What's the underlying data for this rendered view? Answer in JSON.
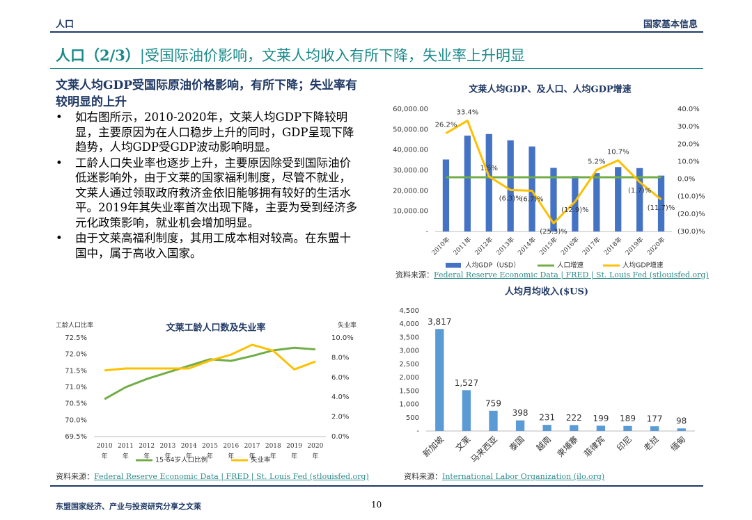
{
  "header": {
    "left": "人口",
    "right": "国家基本信息"
  },
  "title": {
    "main": "人口（2/3）",
    "sub": "|受国际油价影响，文莱人均收入有所下降，失业率上升明显"
  },
  "section": {
    "heading": "文莱人均GDP受国际原油价格影响，有所下降；失业率有较明显的上升",
    "bullets": [
      "如右图所示，2010-2020年，文莱人均GDP下降较明显，主要原因为在人口稳步上升的同时，GDP呈现下降趋势，人均GDP受GDP波动影响明显。",
      "工龄人口失业率也逐步上升，主要原因除受到国际油价低迷影响外，由于文莱的国家福利制度，尽管不就业，文莱人通过领取政府救济金依旧能够拥有较好的生活水平。2019年其失业率首次出现下降，主要为受到经济多元化政策影响，就业机会增加明显。",
      "由于文莱高福利制度，其用工成本相对较高。在东盟十国中，属于高收入国家。"
    ]
  },
  "sources": [
    {
      "prefix": "资料来源：",
      "link": "Federal Reserve Economic Data | FRED | St. Louis Fed (stlouisfed.org)"
    },
    {
      "prefix": "资料来源：",
      "link": "International Labor Organization (ilo.org)"
    },
    {
      "prefix": "资料来源：",
      "link": "Federal Reserve Economic Data | FRED | St. Louis Fed (stlouisfed.org)"
    }
  ],
  "footer": {
    "left": "东盟国家经济、产业与投资研究分享之文莱",
    "page": "10"
  },
  "chart_data": [
    {
      "type": "bar",
      "title": "文莱人均GDP、及人口、人均GDP增速",
      "categories": [
        "2010年",
        "2011年",
        "2012年",
        "2013年",
        "2014年",
        "2015年",
        "2016年",
        "2017年",
        "2018年",
        "2019年",
        "2020年"
      ],
      "series": [
        {
          "name": "人均GDP（USD）",
          "type": "bar",
          "color": "#4472c4",
          "values": [
            35300,
            47000,
            47800,
            44700,
            41700,
            31200,
            27200,
            28600,
            31600,
            31100,
            27400
          ]
        },
        {
          "name": "人口增速",
          "type": "line",
          "axis": "y2",
          "color": "#70ad47",
          "values": [
            1.0,
            1.0,
            1.0,
            1.0,
            1.0,
            1.0,
            1.0,
            1.0,
            1.0,
            1.0,
            1.0
          ]
        },
        {
          "name": "人均GDP增速",
          "type": "line",
          "axis": "y2",
          "color": "#ffc000",
          "values": [
            26.2,
            33.4,
            1.5,
            -6.3,
            -6.7,
            -25.3,
            -12.9,
            5.2,
            10.7,
            -1.7,
            -11.7
          ],
          "value_labels": [
            "26.2%",
            "33.4%",
            "1.5%",
            "(6.3)%",
            "(6.7)%",
            "(25.3)%",
            "(12.9)%",
            "5.2%",
            "10.7%",
            "(1.7)%",
            "(11.7)%"
          ]
        }
      ],
      "ylim": [
        0,
        60000
      ],
      "yticks": [
        {
          "value": 0,
          "label": "-"
        },
        {
          "value": 10000,
          "label": "10,000.00"
        },
        {
          "value": 20000,
          "label": "20,000.00"
        },
        {
          "value": 30000,
          "label": "30,000.00"
        },
        {
          "value": 40000,
          "label": "40,000.00"
        },
        {
          "value": 50000,
          "label": "50,000.00"
        },
        {
          "value": 60000,
          "label": "60,000.00"
        }
      ],
      "y2lim": [
        -30,
        40
      ],
      "y2ticks": [
        {
          "value": -30,
          "label": "(30.0)%"
        },
        {
          "value": -20,
          "label": "(20.0)%"
        },
        {
          "value": -10,
          "label": "(10.0)%"
        },
        {
          "value": 0,
          "label": "0.0%"
        },
        {
          "value": 10,
          "label": "10.0%"
        },
        {
          "value": 20,
          "label": "20.0%"
        },
        {
          "value": 30,
          "label": "30.0%"
        },
        {
          "value": 40,
          "label": "40.0%"
        }
      ],
      "grid": false,
      "legend": "bottom"
    },
    {
      "type": "line",
      "title": "文莱工龄人口数及失业率",
      "ylabel": "工龄人口比率",
      "y2label": "失业率",
      "categories": [
        "2010年",
        "2011年",
        "2012年",
        "2013年",
        "2014年",
        "2015年",
        "2016年",
        "2017年",
        "2018年",
        "2019年",
        "2020年"
      ],
      "series": [
        {
          "name": "15-64岁人口比例",
          "color": "#70ad47",
          "values": [
            70.64,
            71.0,
            71.25,
            71.45,
            71.65,
            71.85,
            71.8,
            71.95,
            72.12,
            72.2,
            72.15
          ]
        },
        {
          "name": "失业率",
          "axis": "y2",
          "color": "#ffc000",
          "values": [
            6.7,
            6.9,
            6.9,
            6.9,
            6.9,
            7.7,
            8.3,
            9.3,
            8.7,
            6.8,
            7.6
          ]
        }
      ],
      "ylim": [
        69.5,
        72.5
      ],
      "yticks": [
        {
          "value": 69.5,
          "label": "69.5%"
        },
        {
          "value": 70.0,
          "label": "70.0%"
        },
        {
          "value": 70.5,
          "label": "70.5%"
        },
        {
          "value": 71.0,
          "label": "71.0%"
        },
        {
          "value": 71.5,
          "label": "71.5%"
        },
        {
          "value": 72.0,
          "label": "72.0%"
        },
        {
          "value": 72.5,
          "label": "72.5%"
        }
      ],
      "y2lim": [
        0,
        10
      ],
      "y2ticks": [
        {
          "value": 0,
          "label": "0.0%"
        },
        {
          "value": 2,
          "label": "2.0%"
        },
        {
          "value": 4,
          "label": "4.0%"
        },
        {
          "value": 6,
          "label": "6.0%"
        },
        {
          "value": 8,
          "label": "8.0%"
        },
        {
          "value": 10,
          "label": "10.0%"
        }
      ],
      "grid": false,
      "legend": "bottom"
    },
    {
      "type": "bar",
      "title": "人均月均收入($US)",
      "categories": [
        "新加坡",
        "文莱",
        "马来西亚",
        "泰国",
        "越南",
        "柬埔寨",
        "菲律宾",
        "印尼",
        "老挝",
        "缅甸"
      ],
      "values": [
        3817,
        1527,
        759,
        398,
        231,
        222,
        199,
        189,
        177,
        98
      ],
      "value_labels": [
        "3,817",
        "1,527",
        "759",
        "398",
        "231",
        "222",
        "199",
        "189",
        "177",
        "98"
      ],
      "color": "#5b9bd5",
      "ylim": [
        0,
        4500
      ],
      "yticks": [
        {
          "value": 0,
          "label": "-"
        },
        500,
        {
          "value": 1000,
          "label": "1,000"
        },
        {
          "value": 1500,
          "label": "1,500"
        },
        {
          "value": 2000,
          "label": "2,000"
        },
        {
          "value": 2500,
          "label": "2,500"
        },
        {
          "value": 3000,
          "label": "3,000"
        },
        {
          "value": 3500,
          "label": "3,500"
        },
        {
          "value": 4000,
          "label": "4,000"
        },
        {
          "value": 4500,
          "label": "4,500"
        }
      ],
      "grid": false
    }
  ]
}
